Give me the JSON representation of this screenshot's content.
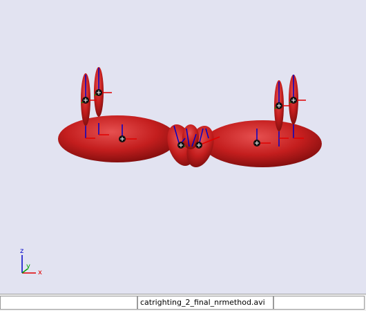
{
  "viewport": {
    "background_color": "#e2e3f1",
    "body_color": "#c41e1e",
    "joint_marker_color": "#111111",
    "frame_axis_colors": {
      "x": "#e00000",
      "y": "#00a000",
      "z": "#0000c8"
    }
  },
  "axes_triad": {
    "x_label": "x",
    "y_label": "y",
    "z_label": "z"
  },
  "statusbar": {
    "left_text": "",
    "file_name": "catrighting_2_final_nrmethod.avi",
    "right_text": ""
  }
}
